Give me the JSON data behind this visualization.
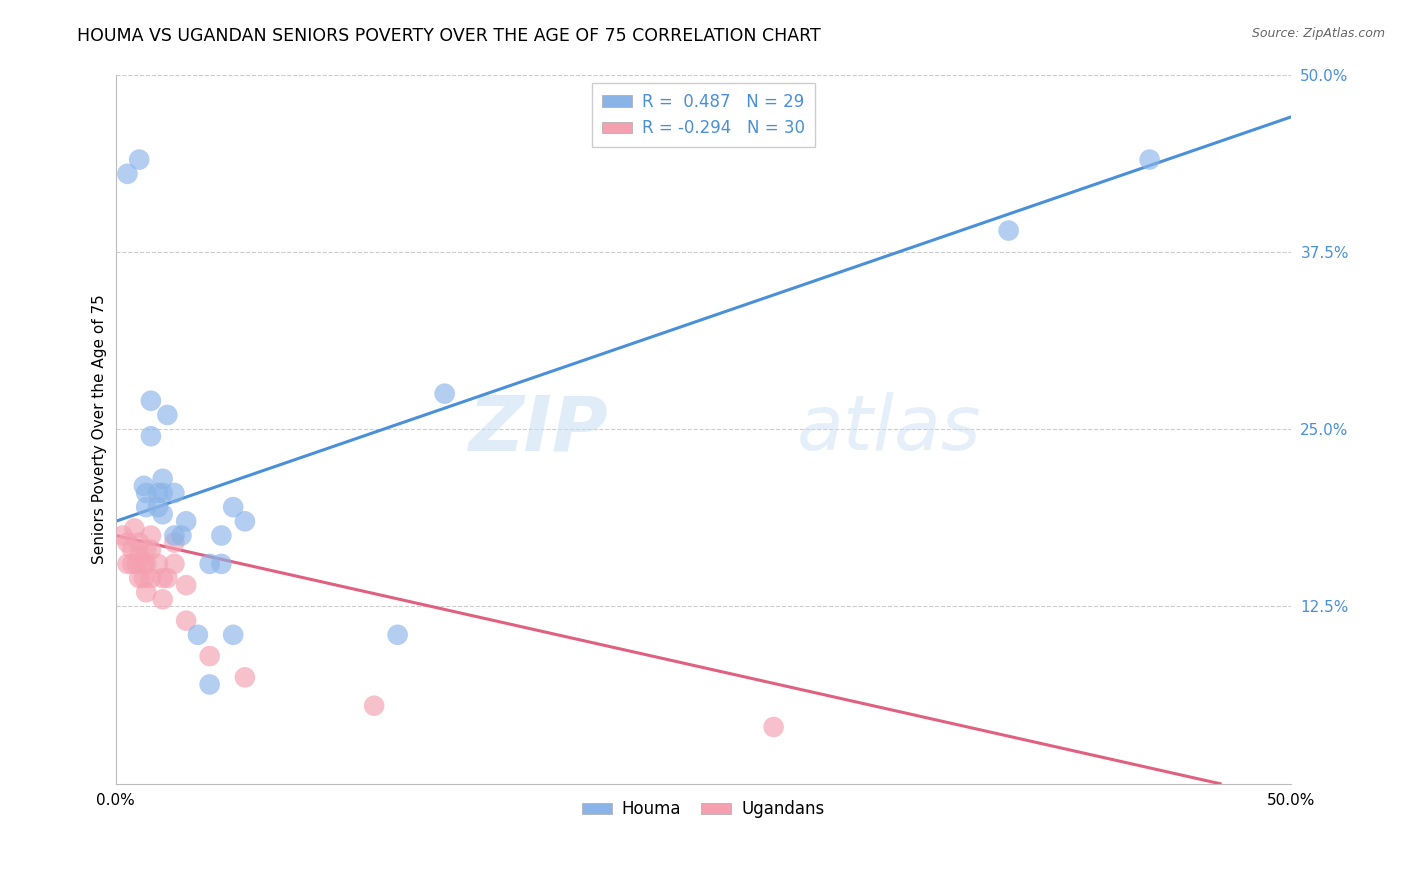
{
  "title": "HOUMA VS UGANDAN SENIORS POVERTY OVER THE AGE OF 75 CORRELATION CHART",
  "source": "Source: ZipAtlas.com",
  "ylabel": "Seniors Poverty Over the Age of 75",
  "xlim": [
    0.0,
    0.5
  ],
  "ylim": [
    0.0,
    0.5
  ],
  "xticks": [
    0.0,
    0.125,
    0.25,
    0.375,
    0.5
  ],
  "xticklabels": [
    "0.0%",
    "",
    "",
    "",
    "50.0%"
  ],
  "yticks_right": [
    0.125,
    0.25,
    0.375,
    0.5
  ],
  "yticklabels_right": [
    "12.5%",
    "25.0%",
    "37.5%",
    "50.0%"
  ],
  "houma_color": "#8ab4e8",
  "ugandan_color": "#f4a0b0",
  "trendline_blue": "#4a90d9",
  "trendline_pink": "#e06080",
  "legend_R_houma": "R =  0.487",
  "legend_N_houma": "N = 29",
  "legend_R_ugandan": "R = -0.294",
  "legend_N_ugandan": "N = 30",
  "watermark_zip": "ZIP",
  "watermark_atlas": "atlas",
  "houma_x": [
    0.005,
    0.01,
    0.012,
    0.013,
    0.013,
    0.015,
    0.015,
    0.018,
    0.018,
    0.02,
    0.02,
    0.02,
    0.022,
    0.025,
    0.025,
    0.028,
    0.03,
    0.035,
    0.04,
    0.04,
    0.045,
    0.045,
    0.05,
    0.05,
    0.055,
    0.12,
    0.14,
    0.38,
    0.44
  ],
  "houma_y": [
    0.43,
    0.44,
    0.21,
    0.205,
    0.195,
    0.27,
    0.245,
    0.205,
    0.195,
    0.215,
    0.205,
    0.19,
    0.26,
    0.205,
    0.175,
    0.175,
    0.185,
    0.105,
    0.155,
    0.07,
    0.175,
    0.155,
    0.195,
    0.105,
    0.185,
    0.105,
    0.275,
    0.39,
    0.44
  ],
  "ugandan_x": [
    0.003,
    0.005,
    0.005,
    0.007,
    0.007,
    0.008,
    0.009,
    0.01,
    0.01,
    0.01,
    0.012,
    0.012,
    0.013,
    0.013,
    0.013,
    0.015,
    0.015,
    0.015,
    0.018,
    0.02,
    0.02,
    0.022,
    0.025,
    0.025,
    0.03,
    0.03,
    0.04,
    0.055,
    0.11,
    0.28
  ],
  "ugandan_y": [
    0.175,
    0.17,
    0.155,
    0.165,
    0.155,
    0.18,
    0.155,
    0.17,
    0.16,
    0.145,
    0.155,
    0.145,
    0.165,
    0.155,
    0.135,
    0.175,
    0.165,
    0.145,
    0.155,
    0.145,
    0.13,
    0.145,
    0.17,
    0.155,
    0.14,
    0.115,
    0.09,
    0.075,
    0.055,
    0.04
  ],
  "blue_trendline_x0": 0.0,
  "blue_trendline_y0": 0.185,
  "blue_trendline_x1": 0.5,
  "blue_trendline_y1": 0.47,
  "pink_trendline_x0": 0.0,
  "pink_trendline_y0": 0.175,
  "pink_trendline_x1": 0.47,
  "pink_trendline_y1": 0.0
}
